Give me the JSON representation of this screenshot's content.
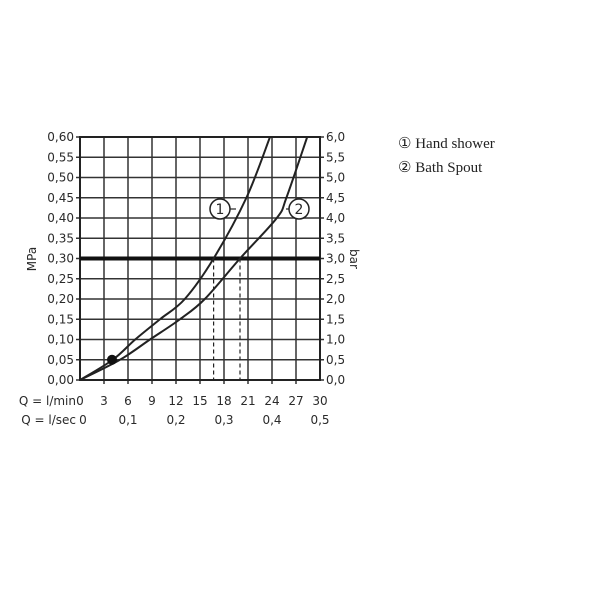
{
  "chart_data": {
    "type": "line",
    "ylabel_left": "MPa",
    "ylabel_right": "bar",
    "xlabel_rows": [
      {
        "label": "Q = l/min",
        "ticks": [
          "0",
          "3",
          "6",
          "9",
          "12",
          "15",
          "18",
          "21",
          "24",
          "27",
          "30"
        ]
      },
      {
        "label": "Q = l/sec",
        "ticks": [
          "0",
          "0,1",
          "0,2",
          "0,3",
          "0,4",
          "0,5"
        ]
      }
    ],
    "xlim": [
      0,
      30
    ],
    "ylim": [
      0,
      0.6
    ],
    "y_ticks_left": [
      "0,00",
      "0,05",
      "0,10",
      "0,15",
      "0,20",
      "0,25",
      "0,30",
      "0,35",
      "0,40",
      "0,45",
      "0,50",
      "0,55",
      "0,60"
    ],
    "y_ticks_right": [
      "0,0",
      "0,5",
      "1,0",
      "1,5",
      "2,0",
      "2,5",
      "3,0",
      "3,5",
      "4,0",
      "4,5",
      "5,0",
      "5,5",
      "6,0"
    ],
    "grid": true,
    "reference_line": {
      "y": 0.3
    },
    "marker_point": {
      "x": 4,
      "y": 0.05
    },
    "series": [
      {
        "name": "1",
        "x": [
          0,
          4.1,
          6.9,
          10,
          13.1,
          16.7,
          20.8,
          23.75
        ],
        "y": [
          0,
          0.05,
          0.1,
          0.15,
          0.2,
          0.3,
          0.45,
          0.6
        ],
        "flow_at_ref": 16.7
      },
      {
        "name": "2",
        "x": [
          0,
          5,
          8.75,
          12.5,
          15.6,
          20,
          24.6,
          25.8,
          28.4
        ],
        "y": [
          0,
          0.05,
          0.1,
          0.15,
          0.2,
          0.3,
          0.4,
          0.45,
          0.6
        ],
        "flow_at_ref": 20
      }
    ],
    "legend": [
      {
        "symbol": "①",
        "label": "Hand shower"
      },
      {
        "symbol": "②",
        "label": "Bath Spout"
      }
    ],
    "legend_placement": "right"
  }
}
